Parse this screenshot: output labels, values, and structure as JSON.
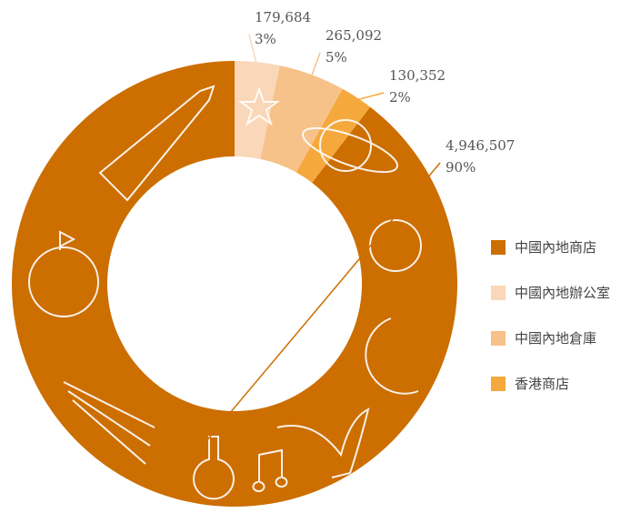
{
  "chart_data": {
    "type": "donut",
    "series": [
      {
        "name": "中國內地商店",
        "color": "#cc6e00",
        "value": 4946507,
        "value_label": "4,946,507",
        "percent_label": "90%"
      },
      {
        "name": "中國內地辦公室",
        "color": "#fad7b8",
        "value": 179684,
        "value_label": "179,684",
        "percent_label": "3%"
      },
      {
        "name": "中國內地倉庫",
        "color": "#f7c18a",
        "value": 265092,
        "value_label": "265,092",
        "percent_label": "5%"
      },
      {
        "name": "香港商店",
        "color": "#f5a83c",
        "value": 130352,
        "value_label": "130,352",
        "percent_label": "2%"
      }
    ],
    "legend": "right"
  }
}
